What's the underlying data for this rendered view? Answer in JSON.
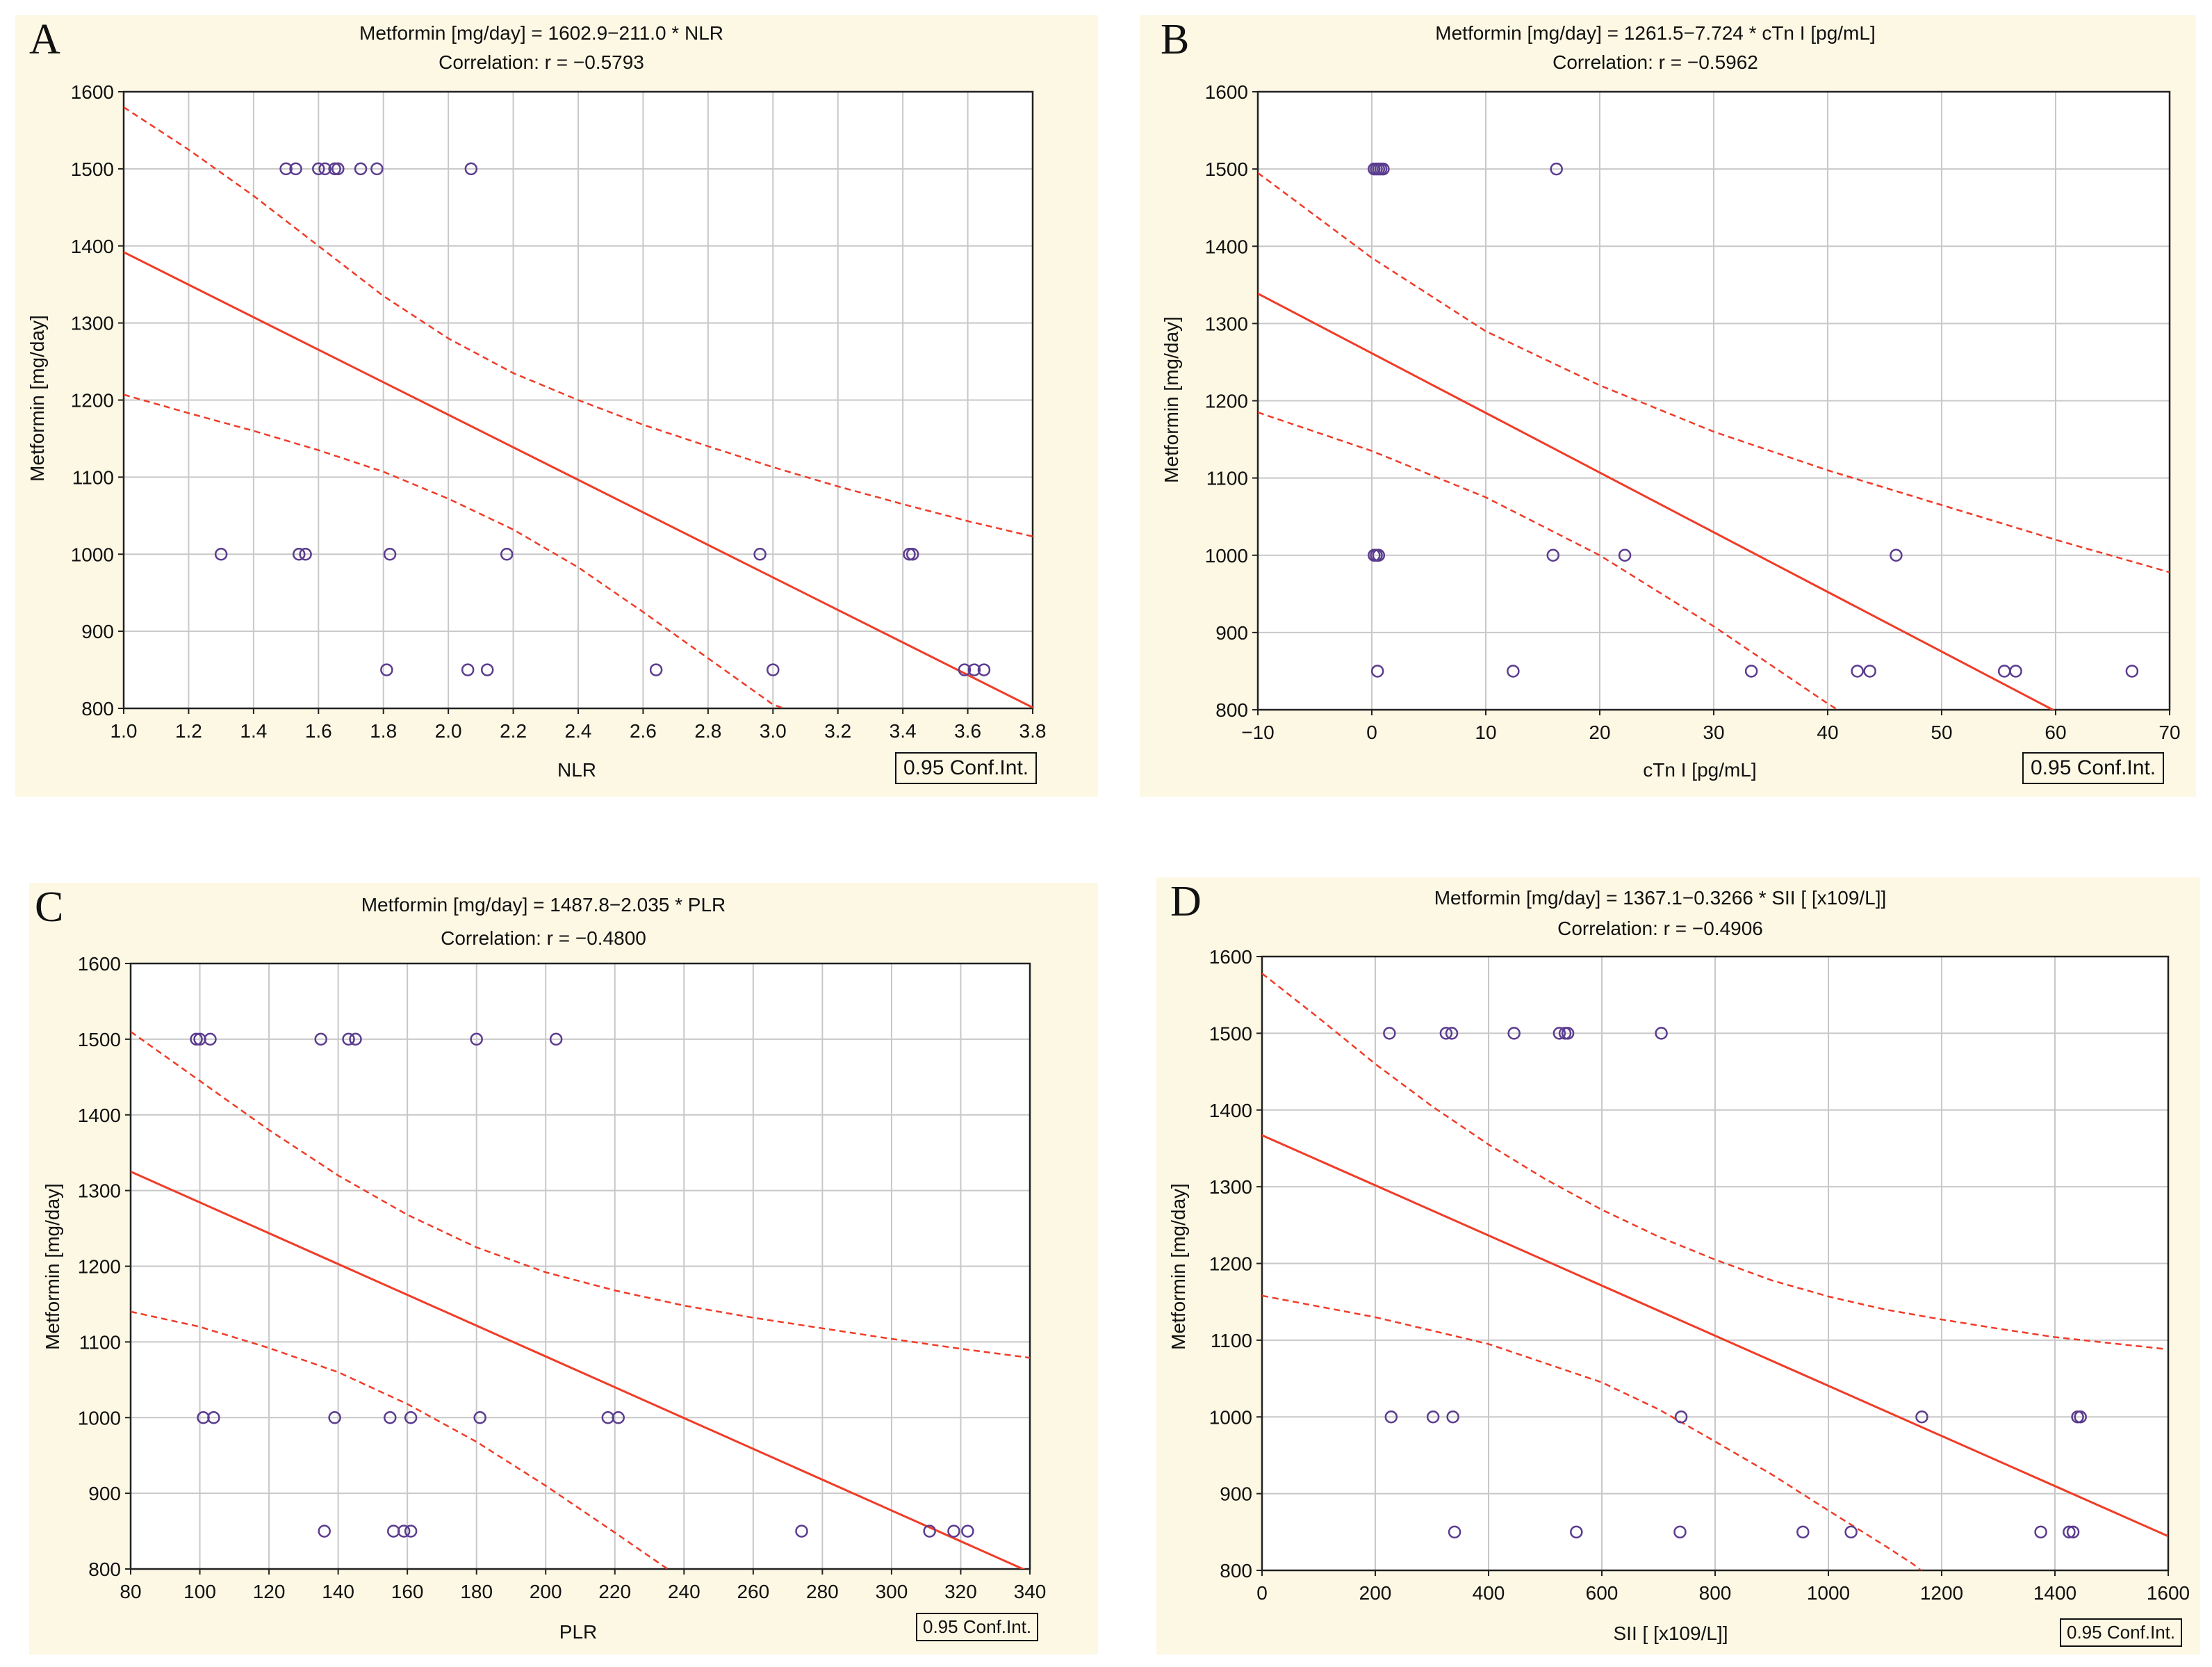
{
  "chart_data": [
    {
      "panel": "A",
      "type": "scatter",
      "equation": "Metformin [mg/day] = 1602.9−211.0  * NLR",
      "correlation": "Correlation: r = −0.5793",
      "xlabel": "NLR",
      "ylabel": "Metformin [mg/day]",
      "xlim": [
        1.0,
        3.8
      ],
      "ylim": [
        800,
        1600
      ],
      "xticks": [
        1.0,
        1.2,
        1.4,
        1.6,
        1.8,
        2.0,
        2.2,
        2.4,
        2.6,
        2.8,
        3.0,
        3.2,
        3.4,
        3.6,
        3.8
      ],
      "xtick_decimals": 1,
      "yticks": [
        800,
        900,
        1000,
        1100,
        1200,
        1300,
        1400,
        1500,
        1600
      ],
      "fit": {
        "intercept": 1602.9,
        "slope": -211.0
      },
      "ci_upper": [
        [
          1.0,
          1580
        ],
        [
          1.2,
          1525
        ],
        [
          1.4,
          1465
        ],
        [
          1.6,
          1400
        ],
        [
          1.8,
          1335
        ],
        [
          2.0,
          1280
        ],
        [
          2.2,
          1235
        ],
        [
          2.4,
          1200
        ],
        [
          2.6,
          1168
        ],
        [
          2.8,
          1140
        ],
        [
          3.0,
          1113
        ],
        [
          3.2,
          1088
        ],
        [
          3.4,
          1065
        ],
        [
          3.6,
          1043
        ],
        [
          3.8,
          1023
        ]
      ],
      "ci_lower": [
        [
          1.0,
          1207
        ],
        [
          1.2,
          1183
        ],
        [
          1.4,
          1160
        ],
        [
          1.6,
          1135
        ],
        [
          1.8,
          1107
        ],
        [
          2.0,
          1072
        ],
        [
          2.2,
          1032
        ],
        [
          2.4,
          983
        ],
        [
          2.6,
          925
        ],
        [
          2.8,
          865
        ],
        [
          3.0,
          805
        ],
        [
          3.1,
          790
        ]
      ],
      "points": [
        [
          1.5,
          1500
        ],
        [
          1.53,
          1500
        ],
        [
          1.6,
          1500
        ],
        [
          1.62,
          1500
        ],
        [
          1.65,
          1500
        ],
        [
          1.66,
          1500
        ],
        [
          1.73,
          1500
        ],
        [
          1.78,
          1500
        ],
        [
          2.07,
          1500
        ],
        [
          1.3,
          1000
        ],
        [
          1.54,
          1000
        ],
        [
          1.56,
          1000
        ],
        [
          1.82,
          1000
        ],
        [
          2.18,
          1000
        ],
        [
          2.96,
          1000
        ],
        [
          3.42,
          1000
        ],
        [
          3.43,
          1000
        ],
        [
          1.81,
          850
        ],
        [
          2.06,
          850
        ],
        [
          2.12,
          850
        ],
        [
          2.64,
          850
        ],
        [
          3.0,
          850
        ],
        [
          3.59,
          850
        ],
        [
          3.62,
          850
        ],
        [
          3.65,
          850
        ]
      ],
      "legend": "0.95 Conf.Int."
    },
    {
      "panel": "B",
      "type": "scatter",
      "equation": "Metformin [mg/day] = 1261.5−7.724  * cTn I [pg/mL]",
      "correlation": "Correlation: r = −0.5962",
      "xlabel": "cTn I [pg/mL]",
      "ylabel": "Metformin [mg/day]",
      "xlim": [
        -10,
        70
      ],
      "ylim": [
        800,
        1600
      ],
      "xticks": [
        -10,
        0,
        10,
        20,
        30,
        40,
        50,
        60,
        70
      ],
      "xtick_decimals": 0,
      "yticks": [
        800,
        900,
        1000,
        1100,
        1200,
        1300,
        1400,
        1500,
        1600
      ],
      "fit": {
        "intercept": 1261.5,
        "slope": -7.724
      },
      "ci_upper": [
        [
          -10,
          1495
        ],
        [
          0,
          1385
        ],
        [
          10,
          1290
        ],
        [
          20,
          1220
        ],
        [
          30,
          1160
        ],
        [
          40,
          1110
        ],
        [
          50,
          1065
        ],
        [
          60,
          1020
        ],
        [
          70,
          978
        ]
      ],
      "ci_lower": [
        [
          -10,
          1185
        ],
        [
          0,
          1135
        ],
        [
          10,
          1075
        ],
        [
          20,
          1000
        ],
        [
          30,
          908
        ],
        [
          40,
          808
        ],
        [
          42,
          790
        ]
      ],
      "points": [
        [
          0.2,
          1500
        ],
        [
          0.4,
          1500
        ],
        [
          0.6,
          1500
        ],
        [
          0.8,
          1500
        ],
        [
          1.0,
          1500
        ],
        [
          16.2,
          1500
        ],
        [
          0.2,
          1000
        ],
        [
          0.4,
          1000
        ],
        [
          0.6,
          1000
        ],
        [
          15.9,
          1000
        ],
        [
          22.2,
          1000
        ],
        [
          46.0,
          1000
        ],
        [
          0.5,
          850
        ],
        [
          12.4,
          850
        ],
        [
          33.3,
          850
        ],
        [
          42.6,
          850
        ],
        [
          43.7,
          850
        ],
        [
          55.5,
          850
        ],
        [
          56.5,
          850
        ],
        [
          66.7,
          850
        ]
      ],
      "legend": "0.95 Conf.Int."
    },
    {
      "panel": "C",
      "type": "scatter",
      "equation": "Metformin [mg/day] = 1487.8−2.035  * PLR",
      "correlation": "Correlation: r = −0.4800",
      "xlabel": "PLR",
      "ylabel": "Metformin [mg/day]",
      "xlim": [
        80,
        340
      ],
      "ylim": [
        800,
        1600
      ],
      "xticks": [
        80,
        100,
        120,
        140,
        160,
        180,
        200,
        220,
        240,
        260,
        280,
        300,
        320,
        340
      ],
      "xtick_decimals": 0,
      "yticks": [
        800,
        900,
        1000,
        1100,
        1200,
        1300,
        1400,
        1500,
        1600
      ],
      "fit": {
        "intercept": 1487.8,
        "slope": -2.035
      },
      "ci_upper": [
        [
          80,
          1510
        ],
        [
          100,
          1445
        ],
        [
          120,
          1380
        ],
        [
          140,
          1320
        ],
        [
          160,
          1268
        ],
        [
          180,
          1225
        ],
        [
          200,
          1192
        ],
        [
          220,
          1168
        ],
        [
          240,
          1148
        ],
        [
          260,
          1132
        ],
        [
          280,
          1118
        ],
        [
          300,
          1104
        ],
        [
          320,
          1091
        ],
        [
          340,
          1079
        ]
      ],
      "ci_lower": [
        [
          80,
          1140
        ],
        [
          100,
          1120
        ],
        [
          120,
          1092
        ],
        [
          140,
          1060
        ],
        [
          160,
          1018
        ],
        [
          180,
          968
        ],
        [
          200,
          910
        ],
        [
          220,
          848
        ],
        [
          240,
          785
        ]
      ],
      "points": [
        [
          99,
          1500
        ],
        [
          100,
          1500
        ],
        [
          103,
          1500
        ],
        [
          135,
          1500
        ],
        [
          143,
          1500
        ],
        [
          145,
          1500
        ],
        [
          180,
          1500
        ],
        [
          203,
          1500
        ],
        [
          101,
          1000
        ],
        [
          104,
          1000
        ],
        [
          139,
          1000
        ],
        [
          155,
          1000
        ],
        [
          161,
          1000
        ],
        [
          181,
          1000
        ],
        [
          218,
          1000
        ],
        [
          221,
          1000
        ],
        [
          136,
          850
        ],
        [
          156,
          850
        ],
        [
          159,
          850
        ],
        [
          161,
          850
        ],
        [
          274,
          850
        ],
        [
          311,
          850
        ],
        [
          318,
          850
        ],
        [
          322,
          850
        ]
      ],
      "legend": "0.95 Conf.Int."
    },
    {
      "panel": "D",
      "type": "scatter",
      "equation": "Metformin [mg/day] = 1367.1−0.3266  * SII [ [x109/L]]",
      "correlation": "Correlation: r = −0.4906",
      "xlabel": "SII [ [x109/L]]",
      "ylabel": "Metformin [mg/day]",
      "xlim": [
        0,
        1600
      ],
      "ylim": [
        800,
        1600
      ],
      "xticks": [
        0,
        200,
        400,
        600,
        800,
        1000,
        1200,
        1400,
        1600
      ],
      "xtick_decimals": 0,
      "yticks": [
        800,
        900,
        1000,
        1100,
        1200,
        1300,
        1400,
        1500,
        1600
      ],
      "fit": {
        "intercept": 1367.1,
        "slope": -0.3266
      },
      "ci_upper": [
        [
          0,
          1578
        ],
        [
          100,
          1520
        ],
        [
          200,
          1460
        ],
        [
          300,
          1405
        ],
        [
          400,
          1355
        ],
        [
          500,
          1310
        ],
        [
          600,
          1270
        ],
        [
          700,
          1235
        ],
        [
          800,
          1205
        ],
        [
          900,
          1178
        ],
        [
          1000,
          1157
        ],
        [
          1100,
          1140
        ],
        [
          1200,
          1127
        ],
        [
          1300,
          1115
        ],
        [
          1400,
          1104
        ],
        [
          1500,
          1096
        ],
        [
          1600,
          1088
        ]
      ],
      "ci_lower": [
        [
          0,
          1158
        ],
        [
          200,
          1130
        ],
        [
          400,
          1095
        ],
        [
          600,
          1045
        ],
        [
          700,
          1010
        ],
        [
          800,
          968
        ],
        [
          900,
          925
        ],
        [
          1000,
          878
        ],
        [
          1100,
          832
        ],
        [
          1150,
          808
        ],
        [
          1180,
          790
        ]
      ],
      "points": [
        [
          225,
          1500
        ],
        [
          325,
          1500
        ],
        [
          335,
          1500
        ],
        [
          445,
          1500
        ],
        [
          525,
          1500
        ],
        [
          535,
          1500
        ],
        [
          540,
          1500
        ],
        [
          705,
          1500
        ],
        [
          228,
          1000
        ],
        [
          302,
          1000
        ],
        [
          337,
          1000
        ],
        [
          740,
          1000
        ],
        [
          1165,
          1000
        ],
        [
          1440,
          1000
        ],
        [
          1445,
          1000
        ],
        [
          340,
          850
        ],
        [
          555,
          850
        ],
        [
          738,
          850
        ],
        [
          955,
          850
        ],
        [
          1040,
          850
        ],
        [
          1375,
          850
        ],
        [
          1425,
          850
        ],
        [
          1432,
          850
        ]
      ],
      "legend": "0.95 Conf.Int."
    }
  ],
  "colors": {
    "fit": "#f03c28",
    "point": "#5b3c8f",
    "grid": "#c8c8c8",
    "background": "#fdf8e4"
  }
}
